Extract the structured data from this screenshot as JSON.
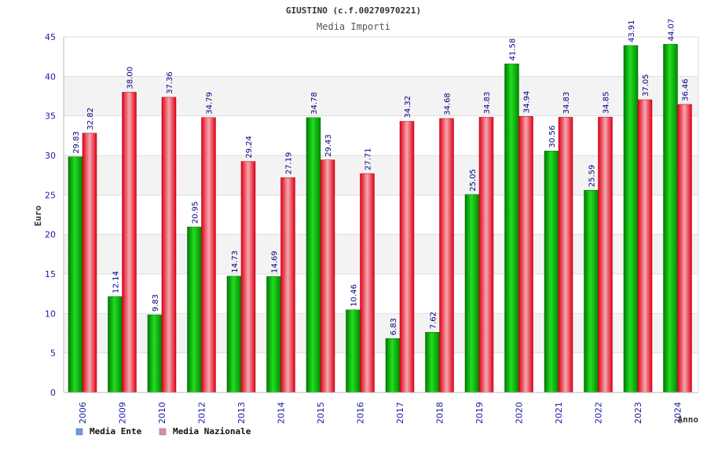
{
  "chart_data": {
    "type": "bar",
    "title": "GIUSTINO (c.f.00270970221)",
    "subtitle": "Media Importi",
    "xlabel": "Anno",
    "ylabel": "Euro",
    "ylim": [
      0,
      45
    ],
    "yticks": [
      0,
      5,
      10,
      15,
      20,
      25,
      30,
      35,
      40,
      45
    ],
    "grid": true,
    "legend_position": "bottom-left",
    "categories": [
      "2006",
      "2009",
      "2010",
      "2012",
      "2013",
      "2014",
      "2015",
      "2016",
      "2017",
      "2018",
      "2019",
      "2020",
      "2021",
      "2022",
      "2023",
      "2024"
    ],
    "series": [
      {
        "name": "Media Ente",
        "color": "#00bb00",
        "legend_color": "#6699ee",
        "values": [
          29.83,
          12.14,
          9.83,
          20.95,
          14.73,
          14.69,
          34.78,
          10.46,
          6.83,
          7.62,
          25.05,
          41.58,
          30.56,
          25.59,
          43.91,
          44.07
        ],
        "labels": [
          "29.83",
          "12.14",
          "9.83",
          "20.95",
          "14.73",
          "14.69",
          "34.78",
          "10.46",
          "6.83",
          "7.62",
          "25.05",
          "41.58",
          "30.56",
          "25.59",
          "43.91",
          "44.07"
        ]
      },
      {
        "name": "Media Nazionale",
        "color": "#ee1122",
        "legend_color": "#dd88aa",
        "values": [
          32.82,
          38.0,
          37.36,
          34.79,
          29.24,
          27.19,
          29.43,
          27.71,
          34.32,
          34.68,
          34.83,
          34.94,
          34.83,
          34.85,
          37.05,
          36.46
        ],
        "labels": [
          "32.82",
          "38.00",
          "37.36",
          "34.79",
          "29.24",
          "27.19",
          "29.43",
          "27.71",
          "34.32",
          "34.68",
          "34.83",
          "34.94",
          "34.83",
          "34.85",
          "37.05",
          "36.46"
        ]
      }
    ]
  }
}
